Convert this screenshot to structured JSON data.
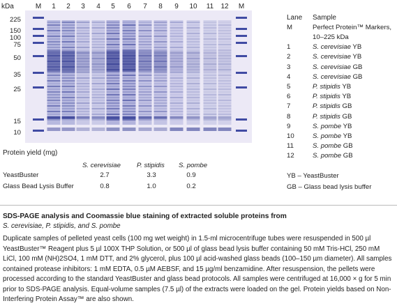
{
  "gel": {
    "axis_unit": "kDa",
    "mw_markers": [
      "225",
      "150",
      "100",
      "75",
      "50",
      "35",
      "25",
      "15",
      "10"
    ],
    "lane_labels": [
      "M",
      "1",
      "2",
      "3",
      "4",
      "5",
      "6",
      "7",
      "8",
      "9",
      "10",
      "11",
      "12",
      "M"
    ]
  },
  "yield": {
    "title": "Protein yield (mg)",
    "columns": [
      "S. cerevisiae",
      "P. stipidis",
      "S. pombe"
    ],
    "rows": [
      {
        "label": "YeastBuster",
        "values": [
          "2.7",
          "3.3",
          "0.9"
        ]
      },
      {
        "label": "Glass Bead Lysis Buffer",
        "values": [
          "0.8",
          "1.0",
          "0.2"
        ]
      }
    ]
  },
  "legend": {
    "header_lane": "Lane",
    "header_sample": "Sample",
    "entries": [
      {
        "lane": "M",
        "sample": "Perfect Protein™ Markers,",
        "sample2": "10–225 kDa"
      },
      {
        "lane": "1",
        "species": "S. cerevisiae",
        "suffix": "YB"
      },
      {
        "lane": "2",
        "species": "S. cerevisiae",
        "suffix": "YB"
      },
      {
        "lane": "3",
        "species": "S. cerevisiae",
        "suffix": "GB"
      },
      {
        "lane": "4",
        "species": "S. cerevisiae",
        "suffix": "GB"
      },
      {
        "lane": "5",
        "species": "P. stipidis",
        "suffix": "YB"
      },
      {
        "lane": "6",
        "species": "P. stipidis",
        "suffix": "YB"
      },
      {
        "lane": "7",
        "species": "P. stipidis",
        "suffix": "GB"
      },
      {
        "lane": "8",
        "species": "P. stipidis",
        "suffix": "GB"
      },
      {
        "lane": "9",
        "species": "S. pombe",
        "suffix": "YB"
      },
      {
        "lane": "10",
        "species": "S. pombe",
        "suffix": "YB"
      },
      {
        "lane": "11",
        "species": "S. pombe",
        "suffix": "GB"
      },
      {
        "lane": "12",
        "species": "S. pombe",
        "suffix": "GB"
      }
    ],
    "abbrev": [
      {
        "key": "YB",
        "text": "YeastBuster"
      },
      {
        "key": "GB",
        "text": "Glass bead lysis buffer"
      }
    ]
  },
  "caption": {
    "title": "SDS-PAGE analysis and Coomassie blue staining of extracted soluble proteins from",
    "species_line": "S. cerevisiae, P. stipidis, and S. pombe",
    "body": "Duplicate samples of pelleted yeast cells (100 mg wet weight) in 1.5-ml microcentrifuge tubes were resuspended in 500 µl YeastBuster™ Reagent plus 5 µl 100X THP Solution, or 500 µl of glass bead lysis buffer containing 50 mM Tris-HCl, 250 mM LiCl, 100 mM (NH)2SO4, 1 mM DTT, and 2% glycerol, plus 100 µl acid-washed glass beads (100–150 µm diameter). All samples contained protease inhibitors: 1 mM EDTA, 0.5 µM AEBSF, and 15 µg/ml benzamidine. After resuspension, the pellets were processed according to the standard YeastBuster and glass bead protocols. All samples were centrifuged at 16,000 × g for 5 min prior to SDS-PAGE analysis. Equal-volume samples (7.5 µl) of the extracts were loaded on the gel. Protein yields based on Non-Interfering Protein Assay™ are also shown."
  }
}
